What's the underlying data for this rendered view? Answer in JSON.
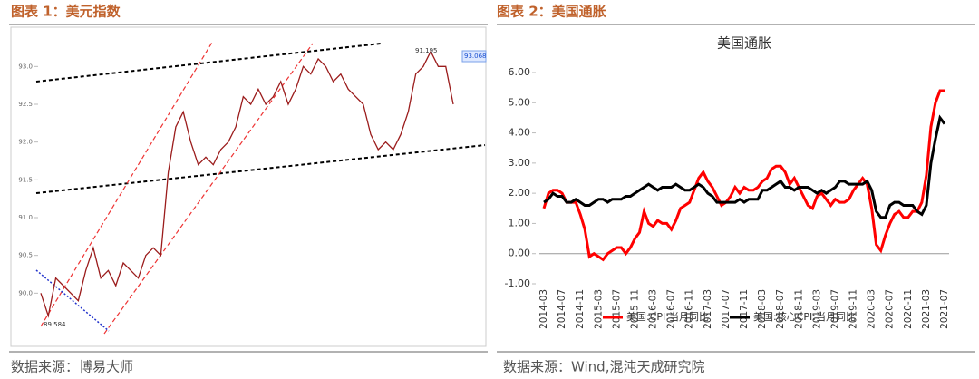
{
  "chart_data": [
    {
      "type": "line",
      "caption": "图表 1：美元指数",
      "source": "数据来源：博易大师",
      "values": [
        90.0,
        89.7,
        90.2,
        90.1,
        90.0,
        89.9,
        90.3,
        90.6,
        90.2,
        90.3,
        90.1,
        90.4,
        90.3,
        90.2,
        90.5,
        90.6,
        90.5,
        91.6,
        92.2,
        92.4,
        92.0,
        91.7,
        91.8,
        91.7,
        91.9,
        92.0,
        92.2,
        92.6,
        92.5,
        92.7,
        92.5,
        92.6,
        92.8,
        92.5,
        92.7,
        93.0,
        92.9,
        93.1,
        93.0,
        92.8,
        92.9,
        92.7,
        92.6,
        92.5,
        92.1,
        91.9,
        92.0,
        91.9,
        92.1,
        92.4,
        92.9,
        93.0,
        93.2,
        93.0,
        93.0,
        92.5
      ],
      "color": "#9b1c1c",
      "ylim": [
        89.5,
        93.4
      ],
      "yticks": [
        {
          "value": 90,
          "label": "90.0"
        },
        {
          "value": 90.5,
          "label": "90.5"
        },
        {
          "value": 91,
          "label": "91.0"
        },
        {
          "value": 91.5,
          "label": "91.5"
        },
        {
          "value": 92,
          "label": "92.0"
        },
        {
          "value": 92.5,
          "label": "92.5"
        },
        {
          "value": 93,
          "label": "93.0"
        }
      ],
      "annotations": [
        "91.195",
        "89.584",
        "93.068"
      ]
    },
    {
      "type": "line",
      "caption": "图表 2：美国通胀",
      "source": "数据来源：Wind,混沌天成研究院",
      "title": "美国通胀",
      "categories": [
        "2014-03",
        null,
        null,
        null,
        "2014-07",
        null,
        null,
        null,
        "2014-11",
        null,
        null,
        null,
        "2015-03",
        null,
        null,
        null,
        "2015-07",
        null,
        null,
        null,
        "2015-11",
        null,
        null,
        null,
        "2016-03",
        null,
        null,
        null,
        "2016-07",
        null,
        null,
        null,
        "2016-11",
        null,
        null,
        null,
        "2017-03",
        null,
        null,
        null,
        "2017-07",
        null,
        null,
        null,
        "2017-11",
        null,
        null,
        null,
        "2018-03",
        null,
        null,
        null,
        "2018-07",
        null,
        null,
        null,
        "2018-11",
        null,
        null,
        null,
        "2019-03",
        null,
        null,
        null,
        "2019-07",
        null,
        null,
        null,
        "2019-11",
        null,
        null,
        null,
        "2020-03",
        null,
        null,
        null,
        "2020-07",
        null,
        null,
        null,
        "2020-11",
        null,
        null,
        null,
        "2021-03",
        null,
        null,
        null,
        "2021-07"
      ],
      "series": [
        {
          "name": "美国:CPI:当月同比",
          "color": "#ff0000",
          "values": [
            1.5,
            2.0,
            2.1,
            2.1,
            2.0,
            1.7,
            1.7,
            1.7,
            1.3,
            0.8,
            -0.1,
            0.0,
            -0.1,
            -0.2,
            0.0,
            0.1,
            0.2,
            0.2,
            0.0,
            0.2,
            0.5,
            0.7,
            1.4,
            1.0,
            0.9,
            1.1,
            1.0,
            1.0,
            0.8,
            1.1,
            1.5,
            1.6,
            1.7,
            2.1,
            2.5,
            2.7,
            2.4,
            2.2,
            1.9,
            1.6,
            1.7,
            1.9,
            2.2,
            2.0,
            2.2,
            2.1,
            2.1,
            2.2,
            2.4,
            2.5,
            2.8,
            2.9,
            2.9,
            2.7,
            2.3,
            2.5,
            2.2,
            1.9,
            1.6,
            1.5,
            1.9,
            2.0,
            1.8,
            1.6,
            1.8,
            1.7,
            1.7,
            1.8,
            2.1,
            2.3,
            2.5,
            2.3,
            1.5,
            0.3,
            0.1,
            0.6,
            1.0,
            1.3,
            1.4,
            1.2,
            1.2,
            1.4,
            1.4,
            1.7,
            2.6,
            4.2,
            5.0,
            5.4,
            5.4
          ]
        },
        {
          "name": "美国:核心CPI:当月同比",
          "color": "#000000",
          "values": [
            1.7,
            1.8,
            2.0,
            1.9,
            1.9,
            1.7,
            1.7,
            1.8,
            1.7,
            1.6,
            1.6,
            1.7,
            1.8,
            1.8,
            1.7,
            1.8,
            1.8,
            1.8,
            1.9,
            1.9,
            2.0,
            2.1,
            2.2,
            2.3,
            2.2,
            2.1,
            2.2,
            2.2,
            2.2,
            2.3,
            2.2,
            2.1,
            2.1,
            2.2,
            2.3,
            2.2,
            2.0,
            1.9,
            1.7,
            1.7,
            1.7,
            1.7,
            1.7,
            1.8,
            1.7,
            1.8,
            1.8,
            1.8,
            2.1,
            2.1,
            2.2,
            2.3,
            2.4,
            2.2,
            2.2,
            2.1,
            2.2,
            2.2,
            2.2,
            2.1,
            2.0,
            2.1,
            2.0,
            2.1,
            2.2,
            2.4,
            2.4,
            2.3,
            2.3,
            2.3,
            2.3,
            2.4,
            2.1,
            1.4,
            1.2,
            1.2,
            1.6,
            1.7,
            1.7,
            1.6,
            1.6,
            1.6,
            1.4,
            1.3,
            1.6,
            3.0,
            3.8,
            4.5,
            4.3
          ]
        }
      ],
      "ylim": [
        -1,
        6
      ],
      "yticks": [
        {
          "value": -1,
          "label": "-1.00"
        },
        {
          "value": 0,
          "label": "0.00"
        },
        {
          "value": 1,
          "label": "1.00"
        },
        {
          "value": 2,
          "label": "2.00"
        },
        {
          "value": 3,
          "label": "3.00"
        },
        {
          "value": 4,
          "label": "4.00"
        },
        {
          "value": 5,
          "label": "5.00"
        },
        {
          "value": 6,
          "label": "6.00"
        }
      ],
      "legend": "bottom"
    }
  ]
}
